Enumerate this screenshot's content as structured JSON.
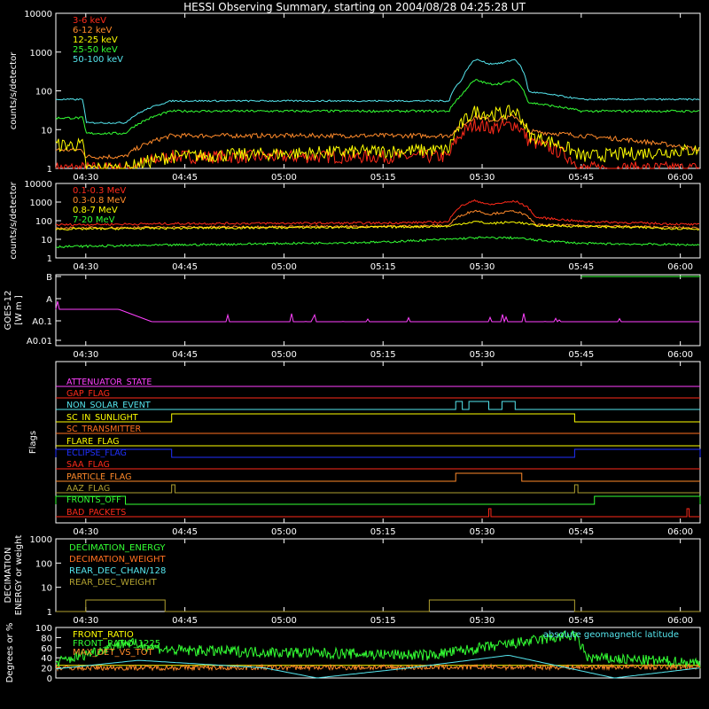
{
  "title": "HESSI Observing Summary, starting on 2004/08/28 04:25:28 UT",
  "colors": {
    "white": "#ffffff",
    "red": "#ff2a1a",
    "orange": "#ff8a2a",
    "yellow": "#ffff00",
    "green": "#33ff33",
    "cyan": "#55e6ee",
    "magenta": "#ff40ff",
    "blue": "#2030ff",
    "olive": "#b0a030",
    "darkorange": "#ff7020"
  },
  "time_ticks": [
    "04:30",
    "04:45",
    "05:00",
    "05:15",
    "05:30",
    "05:45",
    "06:00"
  ],
  "chart_data": [
    {
      "id": "low_energy",
      "type": "line",
      "ylabel": "counts/s/detector",
      "yscale": "log",
      "ylim": [
        1,
        10000
      ],
      "yticks": [
        "1",
        "10",
        "100",
        "1000",
        "10000"
      ],
      "x": [
        "04:25:28",
        "04:29:30",
        "04:30:00",
        "04:36:00",
        "04:43:00",
        "05:25:00",
        "05:27:00",
        "05:29:00",
        "05:31:00",
        "05:33:00",
        "05:35:00",
        "05:37:00",
        "05:45:00",
        "06:03:00"
      ],
      "series": [
        {
          "name": "3-6 keV",
          "color": "red",
          "values": [
            1,
            1,
            1,
            1,
            2,
            2,
            8,
            14,
            11,
            12,
            14,
            5,
            1,
            1
          ]
        },
        {
          "name": "6-12 keV",
          "color": "orange",
          "values": [
            3,
            3,
            2,
            2,
            7,
            7,
            12,
            22,
            18,
            19,
            22,
            9,
            7,
            3
          ]
        },
        {
          "name": "12-25 keV",
          "color": "yellow",
          "values": [
            4,
            4,
            1,
            1,
            2,
            3,
            14,
            30,
            25,
            26,
            30,
            7,
            2,
            3
          ]
        },
        {
          "name": "25-50 keV",
          "color": "green",
          "values": [
            20,
            20,
            8,
            8,
            30,
            30,
            80,
            190,
            150,
            155,
            190,
            50,
            30,
            30
          ]
        },
        {
          "name": "50-100 keV",
          "color": "cyan",
          "values": [
            60,
            60,
            15,
            15,
            55,
            55,
            200,
            650,
            500,
            520,
            650,
            95,
            60,
            60
          ]
        }
      ]
    },
    {
      "id": "high_energy",
      "type": "line",
      "ylabel": "counts/s/detector",
      "yscale": "log",
      "ylim": [
        1,
        10000
      ],
      "yticks": [
        "1",
        "10",
        "100",
        "1000",
        "10000"
      ],
      "x": [
        "04:25:28",
        "04:45:00",
        "05:15:00",
        "05:25:00",
        "05:29:00",
        "05:31:00",
        "05:35:00",
        "05:38:00",
        "05:45:00",
        "06:03:00"
      ],
      "series": [
        {
          "name": "0.1-0.3 MeV",
          "color": "red",
          "values": [
            60,
            70,
            75,
            85,
            1200,
            700,
            1100,
            150,
            90,
            60
          ]
        },
        {
          "name": "0.3-0.8 MeV",
          "color": "orange",
          "values": [
            40,
            45,
            50,
            55,
            350,
            220,
            330,
            60,
            55,
            40
          ]
        },
        {
          "name": "0.8-7 MeV",
          "color": "yellow",
          "values": [
            35,
            40,
            45,
            50,
            90,
            70,
            85,
            55,
            50,
            35
          ]
        },
        {
          "name": "7-20 MeV",
          "color": "green",
          "values": [
            4,
            5,
            7,
            10,
            12,
            12,
            12,
            9,
            6,
            5
          ]
        }
      ]
    },
    {
      "id": "goes",
      "type": "line",
      "ylabel": "GOES-12 [W m^-2]",
      "yscale": "log",
      "yticks": [
        "A0.01",
        "A0.1",
        "A",
        "B"
      ],
      "x": [
        "04:25:28",
        "04:35:00",
        "04:40:00",
        "05:25:00",
        "06:03:00"
      ],
      "series": [
        {
          "name": "GOES-12",
          "color": "magenta",
          "values": [
            "A0.2",
            "A0.2",
            "A0.1",
            "A0.1",
            "A0.1"
          ]
        }
      ]
    },
    {
      "id": "flags",
      "type": "line",
      "ylabel": "Flags",
      "flags": [
        {
          "name": "ATTENUATOR_STATE",
          "color": "magenta"
        },
        {
          "name": "GAP_FLAG",
          "color": "red"
        },
        {
          "name": "NON_SOLAR_EVENT",
          "color": "cyan"
        },
        {
          "name": "SC_IN_SUNLIGHT",
          "color": "yellow"
        },
        {
          "name": "SC_TRANSMITTER",
          "color": "darkorange"
        },
        {
          "name": "FLARE_FLAG",
          "color": "yellow"
        },
        {
          "name": "ECLIPSE_FLAG",
          "color": "blue"
        },
        {
          "name": "SAA_FLAG",
          "color": "red"
        },
        {
          "name": "PARTICLE_FLAG",
          "color": "orange"
        },
        {
          "name": "AAZ_FLAG",
          "color": "olive"
        },
        {
          "name": "FRONTS_OFF",
          "color": "green"
        },
        {
          "name": "BAD_PACKETS",
          "color": "red"
        }
      ]
    },
    {
      "id": "decimation",
      "type": "line",
      "ylabel": "DECIMATION ENERGY or weight",
      "yscale": "log",
      "ylim": [
        1,
        1000
      ],
      "yticks": [
        "1",
        "10",
        "100",
        "1000"
      ],
      "series": [
        {
          "name": "DECIMATION_ENERGY",
          "color": "green"
        },
        {
          "name": "DECIMATION_WEIGHT",
          "color": "darkorange"
        },
        {
          "name": "REAR_DEC_CHAN/128",
          "color": "cyan"
        },
        {
          "name": "REAR_DEC_WEIGHT",
          "color": "olive",
          "x": [
            "04:25:28",
            "04:30:00",
            "04:42:00",
            "05:22:00",
            "05:44:00",
            "06:03:00"
          ],
          "values": [
            1,
            3,
            1,
            3,
            1,
            1
          ]
        }
      ]
    },
    {
      "id": "ratios",
      "type": "line",
      "ylabel": "Degrees or %",
      "ylim": [
        0,
        100
      ],
      "yticks": [
        "0",
        "20",
        "40",
        "60",
        "80",
        "100"
      ],
      "series": [
        {
          "name": "FRONT_RATIO",
          "color": "yellow",
          "x": [
            "04:25:28",
            "06:03:00"
          ],
          "values": [
            25,
            25
          ]
        },
        {
          "name": "FRONT_RATIO_1225",
          "color": "green",
          "x": [
            "04:25:28",
            "04:36:00",
            "04:43:00",
            "05:22:00",
            "05:44:00",
            "05:46:00",
            "06:03:00"
          ],
          "values": [
            30,
            70,
            55,
            45,
            85,
            40,
            30
          ]
        },
        {
          "name": "MAX_DET_VS_TOT",
          "color": "orange",
          "x": [
            "04:25:28",
            "06:03:00"
          ],
          "values": [
            20,
            22
          ]
        },
        {
          "name": "absolute geomagnetic latitude",
          "color": "cyan",
          "x": [
            "04:25:28",
            "04:38:00",
            "04:57:00",
            "05:05:00",
            "05:19:00",
            "05:34:00",
            "05:50:00",
            "06:03:00"
          ],
          "values": [
            18,
            35,
            20,
            0,
            20,
            45,
            0,
            20
          ]
        }
      ]
    }
  ]
}
